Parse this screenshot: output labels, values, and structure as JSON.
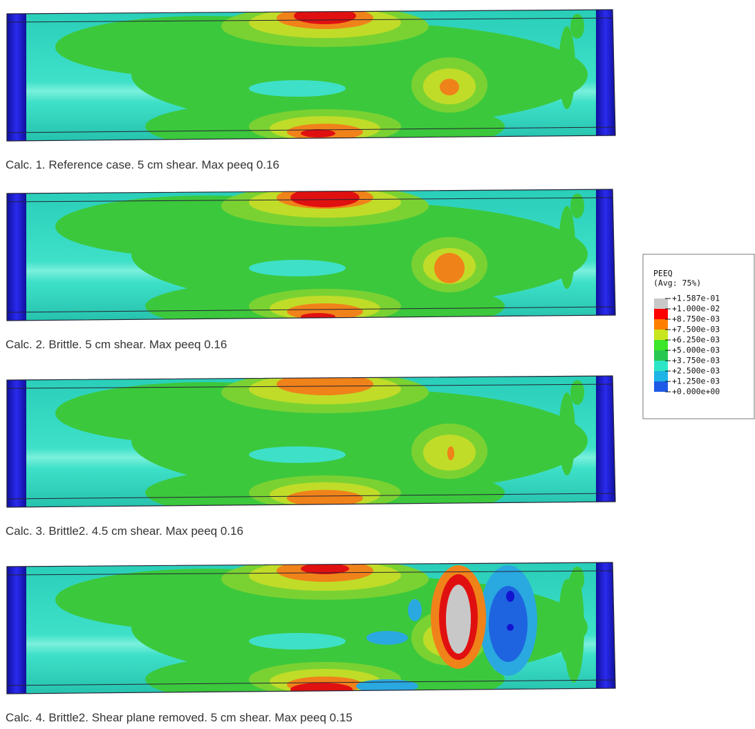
{
  "panels": [
    {
      "caption": "Calc. 1. Reference case. 5 cm shear. Max peeq 0.16"
    },
    {
      "caption": "Calc. 2. Brittle. 5 cm shear. Max peeq 0.16"
    },
    {
      "caption": "Calc. 3. Brittle2. 4.5 cm shear. Max peeq 0.16"
    },
    {
      "caption": "Calc. 4. Brittle2. Shear plane removed. 5 cm shear. Max peeq 0.15"
    }
  ],
  "legend": {
    "title": "PEEQ",
    "subtitle": "(Avg: 75%)",
    "labels": [
      "+1.587e-01",
      "+1.000e-02",
      "+8.750e-03",
      "+7.500e-03",
      "+6.250e-03",
      "+5.000e-03",
      "+3.750e-03",
      "+2.500e-03",
      "+1.250e-03",
      "+0.000e+00"
    ],
    "band_colors": [
      "#c8c8c8",
      "#ff0000",
      "#ff8000",
      "#c8e61e",
      "#3ce628",
      "#28c850",
      "#2de6c8",
      "#1eb4e6",
      "#1e5ae6"
    ]
  }
}
